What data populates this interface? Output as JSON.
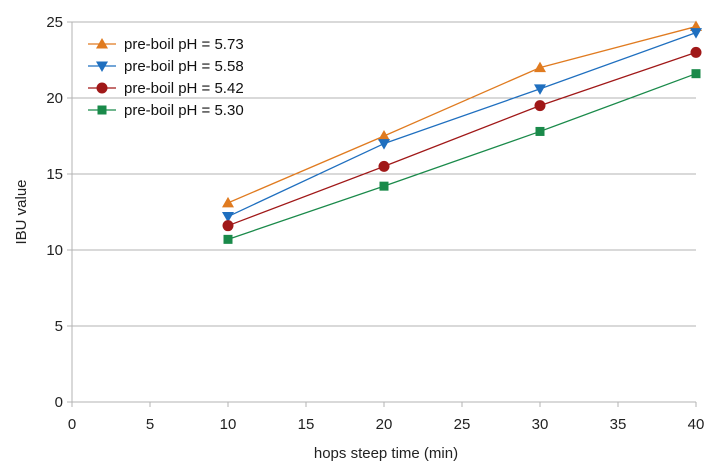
{
  "chart_data": {
    "type": "line",
    "xlabel": "hops steep time (min)",
    "ylabel": "IBU value",
    "xlim": [
      0,
      40
    ],
    "ylim": [
      0,
      25
    ],
    "x_ticks": [
      0,
      5,
      10,
      15,
      20,
      25,
      30,
      35,
      40
    ],
    "y_ticks": [
      0,
      5,
      10,
      15,
      20,
      25
    ],
    "grid": "horizontal",
    "legend_position": "top-left",
    "x": [
      10,
      20,
      30,
      40
    ],
    "series": [
      {
        "name": "pre-boil pH = 5.73",
        "values": [
          13.1,
          17.5,
          22.0,
          24.7
        ],
        "color": "#e07b20",
        "marker": "triangle-up"
      },
      {
        "name": "pre-boil pH = 5.58",
        "values": [
          12.2,
          17.0,
          20.6,
          24.3
        ],
        "color": "#1f6fbf",
        "marker": "triangle-down"
      },
      {
        "name": "pre-boil pH = 5.42",
        "values": [
          11.6,
          15.5,
          19.5,
          23.0
        ],
        "color": "#a01818",
        "marker": "circle"
      },
      {
        "name": "pre-boil pH = 5.30",
        "values": [
          10.7,
          14.2,
          17.8,
          21.6
        ],
        "color": "#1a8a4a",
        "marker": "square"
      }
    ]
  }
}
